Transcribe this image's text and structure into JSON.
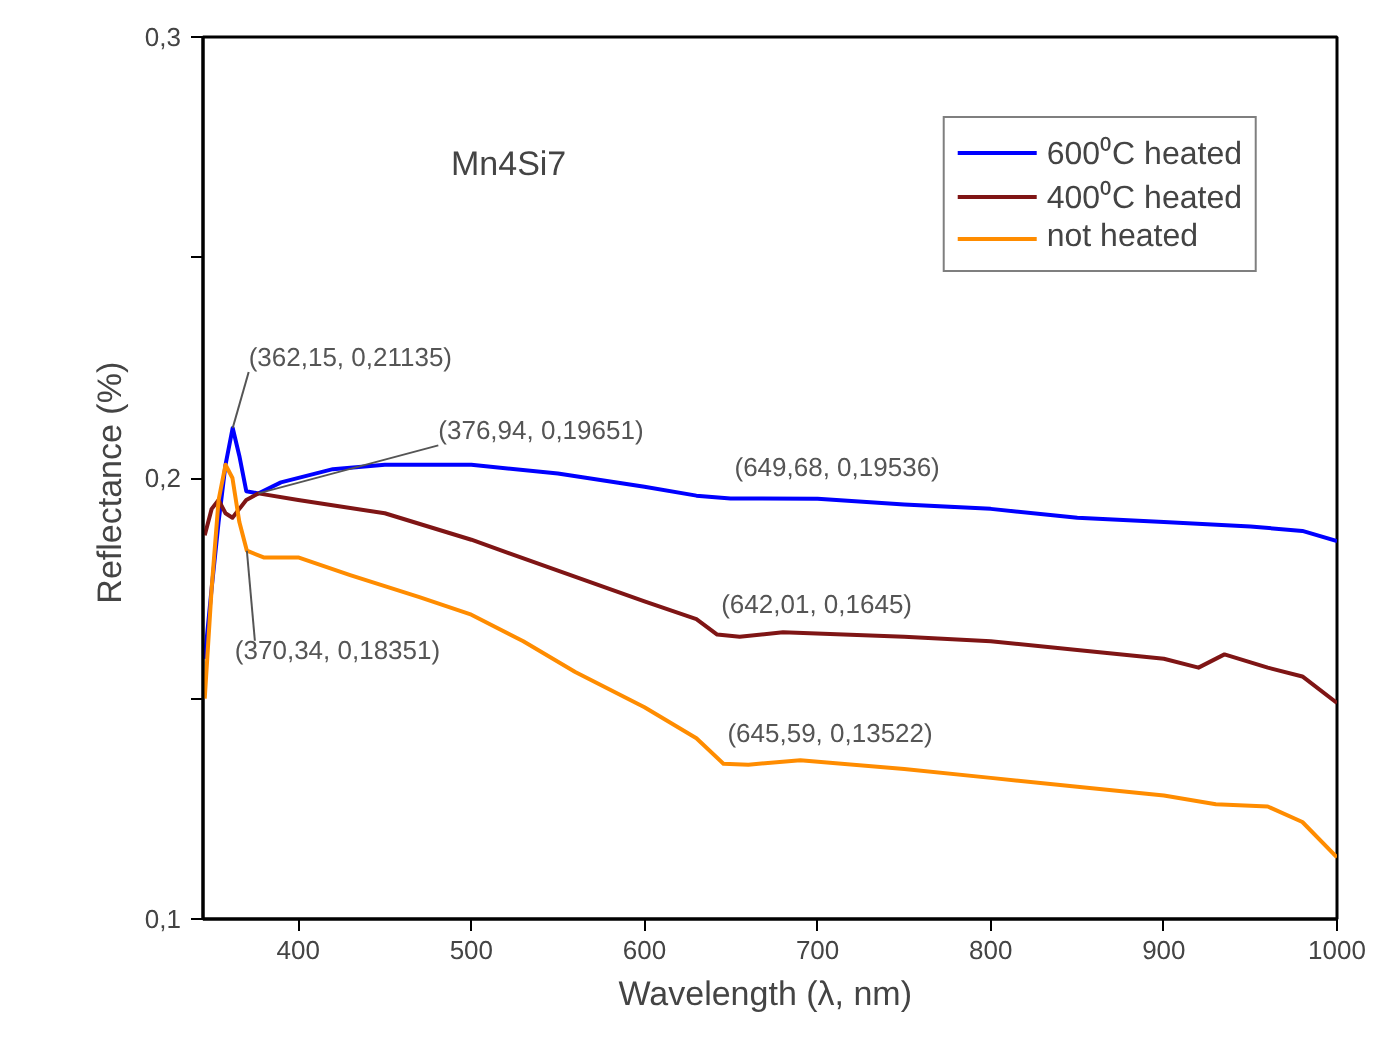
{
  "chart_data": {
    "type": "line",
    "xlabel": "Wavelength (λ,  nm)",
    "ylabel": "Reflectance  (%)",
    "xlim": [
      345,
      1000
    ],
    "ylim": [
      0.1,
      0.3
    ],
    "xticks": [
      400,
      500,
      600,
      700,
      800,
      900,
      1000
    ],
    "yticks": [
      {
        "value": 0.1,
        "label": "0,1"
      },
      {
        "value": 0.15,
        "label": null
      },
      {
        "value": 0.2,
        "label": "0,2"
      },
      {
        "value": 0.25,
        "label": null
      },
      {
        "value": 0.3,
        "label": "0,3"
      }
    ],
    "grid": false,
    "legend": "top right",
    "line_style": "solid",
    "marker": "none",
    "annotations": [
      "Mn4Si7",
      {
        "text": "(362,15, 0,21135)",
        "x": 362.15,
        "y": 0.21135
      },
      {
        "text": "(376,94, 0,19651)",
        "x": 376.94,
        "y": 0.19651
      },
      {
        "text": "(370,34, 0,18351)",
        "x": 370.34,
        "y": 0.18351
      },
      {
        "text": "(649,68, 0,19536)",
        "x": 649.68,
        "y": 0.19536
      },
      {
        "text": "(642,01, 0,1645)",
        "x": 642.01,
        "y": 0.1645
      },
      {
        "text": "(645,59, 0,13522)",
        "x": 645.59,
        "y": 0.13522
      }
    ],
    "series": [
      {
        "name": "600⁰C heated",
        "color": "#0000ff",
        "x": [
          346,
          350,
          354,
          358,
          362.15,
          366,
          370,
          376.94,
          390,
          420,
          450,
          500,
          550,
          600,
          630,
          649.68,
          700,
          750,
          800,
          850,
          900,
          950,
          980,
          1000
        ],
        "values": [
          0.159,
          0.175,
          0.19,
          0.203,
          0.21135,
          0.205,
          0.197,
          0.1965,
          0.199,
          0.202,
          0.203,
          0.203,
          0.201,
          0.198,
          0.196,
          0.19536,
          0.1953,
          0.194,
          0.193,
          0.191,
          0.19,
          0.189,
          0.188,
          0.1857
        ]
      },
      {
        "name": "400⁰C heated",
        "color": "#7f1515",
        "x": [
          346,
          350,
          354,
          358,
          362,
          366,
          370,
          376.94,
          400,
          450,
          500,
          550,
          600,
          630,
          642.01,
          655,
          680,
          750,
          800,
          850,
          900,
          920,
          935,
          960,
          980,
          1000
        ],
        "values": [
          0.187,
          0.193,
          0.195,
          0.192,
          0.191,
          0.193,
          0.195,
          0.19651,
          0.195,
          0.192,
          0.186,
          0.179,
          0.172,
          0.168,
          0.1645,
          0.164,
          0.165,
          0.164,
          0.163,
          0.161,
          0.159,
          0.157,
          0.16,
          0.157,
          0.155,
          0.149
        ]
      },
      {
        "name": "not heated",
        "color": "#ff8c00",
        "x": [
          346,
          350,
          354,
          358,
          362,
          366,
          370.34,
          380,
          400,
          430,
          470,
          500,
          530,
          560,
          600,
          630,
          645.59,
          660,
          690,
          750,
          800,
          850,
          900,
          930,
          960,
          980,
          1000
        ],
        "values": [
          0.15,
          0.175,
          0.195,
          0.203,
          0.2,
          0.19,
          0.18351,
          0.182,
          0.182,
          0.178,
          0.173,
          0.169,
          0.163,
          0.156,
          0.148,
          0.141,
          0.13522,
          0.135,
          0.136,
          0.134,
          0.132,
          0.13,
          0.128,
          0.126,
          0.1255,
          0.122,
          0.114
        ]
      }
    ]
  }
}
